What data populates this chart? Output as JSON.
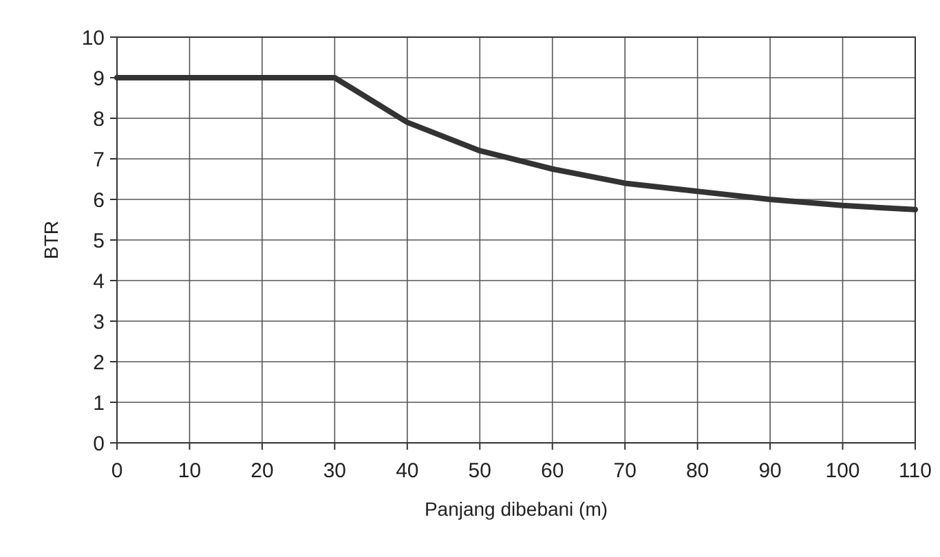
{
  "chart_data": {
    "type": "line",
    "xlabel": "Panjang dibebani (m)",
    "ylabel": "BTR",
    "x": [
      0,
      10,
      20,
      30,
      40,
      50,
      60,
      70,
      80,
      90,
      100,
      110
    ],
    "series": [
      {
        "color": "#333333",
        "values": [
          9,
          9,
          9,
          9,
          7.9,
          7.2,
          6.75,
          6.4,
          6.2,
          6.0,
          5.85,
          5.75
        ]
      }
    ],
    "xlim": [
      0,
      110
    ],
    "xticks": [
      0,
      10,
      20,
      30,
      40,
      50,
      60,
      70,
      80,
      90,
      100,
      110
    ],
    "ylim": [
      0,
      10
    ],
    "yticks": [
      0,
      1,
      2,
      3,
      4,
      5,
      6,
      7,
      8,
      9,
      10
    ],
    "grid": true,
    "marker": "none",
    "line_style": "solid"
  }
}
